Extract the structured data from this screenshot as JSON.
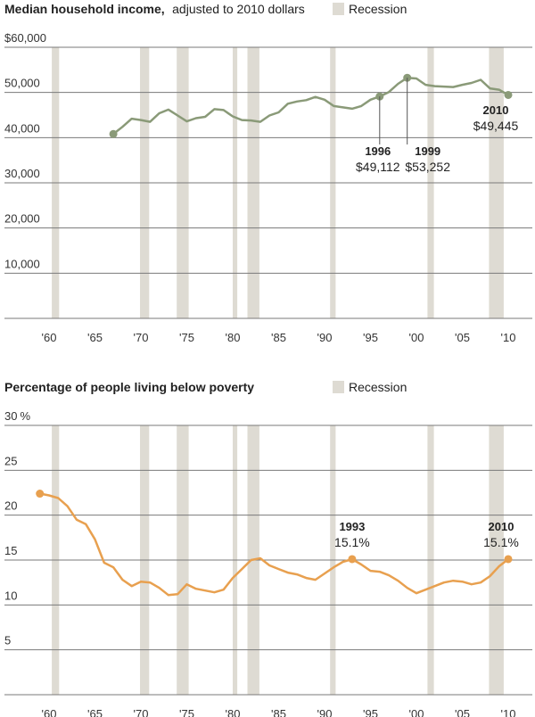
{
  "colors": {
    "income": "#8a9a78",
    "poverty": "#e8a04f",
    "recession": "#dedbd3",
    "grid": "#7a7a7a"
  },
  "recessions": [
    [
      1960.3,
      1961.1
    ],
    [
      1969.9,
      1970.9
    ],
    [
      1973.9,
      1975.2
    ],
    [
      1980.0,
      1980.5
    ],
    [
      1981.6,
      1982.9
    ],
    [
      1990.6,
      1991.2
    ],
    [
      2001.2,
      2001.9
    ],
    [
      2007.9,
      2009.5
    ]
  ],
  "x_ticks": [
    "'60",
    "'65",
    "'70",
    "'75",
    "'80",
    "'85",
    "'90",
    "'95",
    "'00",
    "'05",
    "'10"
  ],
  "chart_data": [
    {
      "type": "line",
      "title": "Median household income,",
      "subtitle": "adjusted to 2010 dollars",
      "legend": "Recession",
      "y_tick_labels": [
        "$60,000",
        "50,000",
        "40,000",
        "30,000",
        "20,000",
        "10,000"
      ],
      "ylim": [
        0,
        60000
      ],
      "xlim": [
        1958,
        2011
      ],
      "grid": true,
      "series": [
        {
          "x": [
            1967,
            1968,
            1969,
            1970,
            1971,
            1972,
            1973,
            1974,
            1975,
            1976,
            1977,
            1978,
            1979,
            1980,
            1981,
            1982,
            1983,
            1984,
            1985,
            1986,
            1987,
            1988,
            1989,
            1990,
            1991,
            1992,
            1993,
            1994,
            1995,
            1996,
            1997,
            1998,
            1999,
            2000,
            2001,
            2002,
            2003,
            2004,
            2005,
            2006,
            2007,
            2008,
            2009,
            2010
          ],
          "values": [
            40800,
            42400,
            44200,
            43900,
            43500,
            45400,
            46200,
            44900,
            43600,
            44300,
            44600,
            46300,
            46100,
            44700,
            43900,
            43800,
            43500,
            44900,
            45600,
            47500,
            48000,
            48300,
            49000,
            48400,
            47000,
            46700,
            46400,
            47000,
            48400,
            49112,
            50100,
            51900,
            53252,
            53100,
            51700,
            51400,
            51300,
            51200,
            51700,
            52100,
            52800,
            50900,
            50600,
            49445
          ]
        }
      ],
      "annotations": [
        {
          "year": "1996",
          "value": "$49,112",
          "x": 1996,
          "y": 49112
        },
        {
          "year": "1999",
          "value": "$53,252",
          "x": 1999,
          "y": 53252
        },
        {
          "year": "2010",
          "value": "$49,445",
          "x": 2010,
          "y": 49445
        }
      ]
    },
    {
      "type": "line",
      "title": "Percentage of people living below poverty",
      "legend": "Recession",
      "y_tick_labels": [
        "30",
        "25",
        "20",
        "15",
        "10",
        "5"
      ],
      "y_unit": "%",
      "ylim": [
        0,
        30
      ],
      "xlim": [
        1958,
        2011
      ],
      "grid": true,
      "series": [
        {
          "x": [
            1959,
            1960,
            1961,
            1962,
            1963,
            1964,
            1965,
            1966,
            1967,
            1968,
            1969,
            1970,
            1971,
            1972,
            1973,
            1974,
            1975,
            1976,
            1977,
            1978,
            1979,
            1980,
            1981,
            1982,
            1983,
            1984,
            1985,
            1986,
            1987,
            1988,
            1989,
            1990,
            1991,
            1992,
            1993,
            1994,
            1995,
            1996,
            1997,
            1998,
            1999,
            2000,
            2001,
            2002,
            2003,
            2004,
            2005,
            2006,
            2007,
            2008,
            2009,
            2010
          ],
          "values": [
            22.4,
            22.2,
            21.9,
            21.0,
            19.5,
            19.0,
            17.3,
            14.7,
            14.2,
            12.8,
            12.1,
            12.6,
            12.5,
            11.9,
            11.1,
            11.2,
            12.3,
            11.8,
            11.6,
            11.4,
            11.7,
            13.0,
            14.0,
            15.0,
            15.2,
            14.4,
            14.0,
            13.6,
            13.4,
            13.0,
            12.8,
            13.5,
            14.2,
            14.8,
            15.1,
            14.5,
            13.8,
            13.7,
            13.3,
            12.7,
            11.9,
            11.3,
            11.7,
            12.1,
            12.5,
            12.7,
            12.6,
            12.3,
            12.5,
            13.2,
            14.3,
            15.1
          ]
        }
      ],
      "annotations": [
        {
          "year": "1993",
          "value": "15.1%",
          "x": 1993,
          "y": 15.1
        },
        {
          "year": "2010",
          "value": "15.1%",
          "x": 2010,
          "y": 15.1
        }
      ]
    }
  ]
}
